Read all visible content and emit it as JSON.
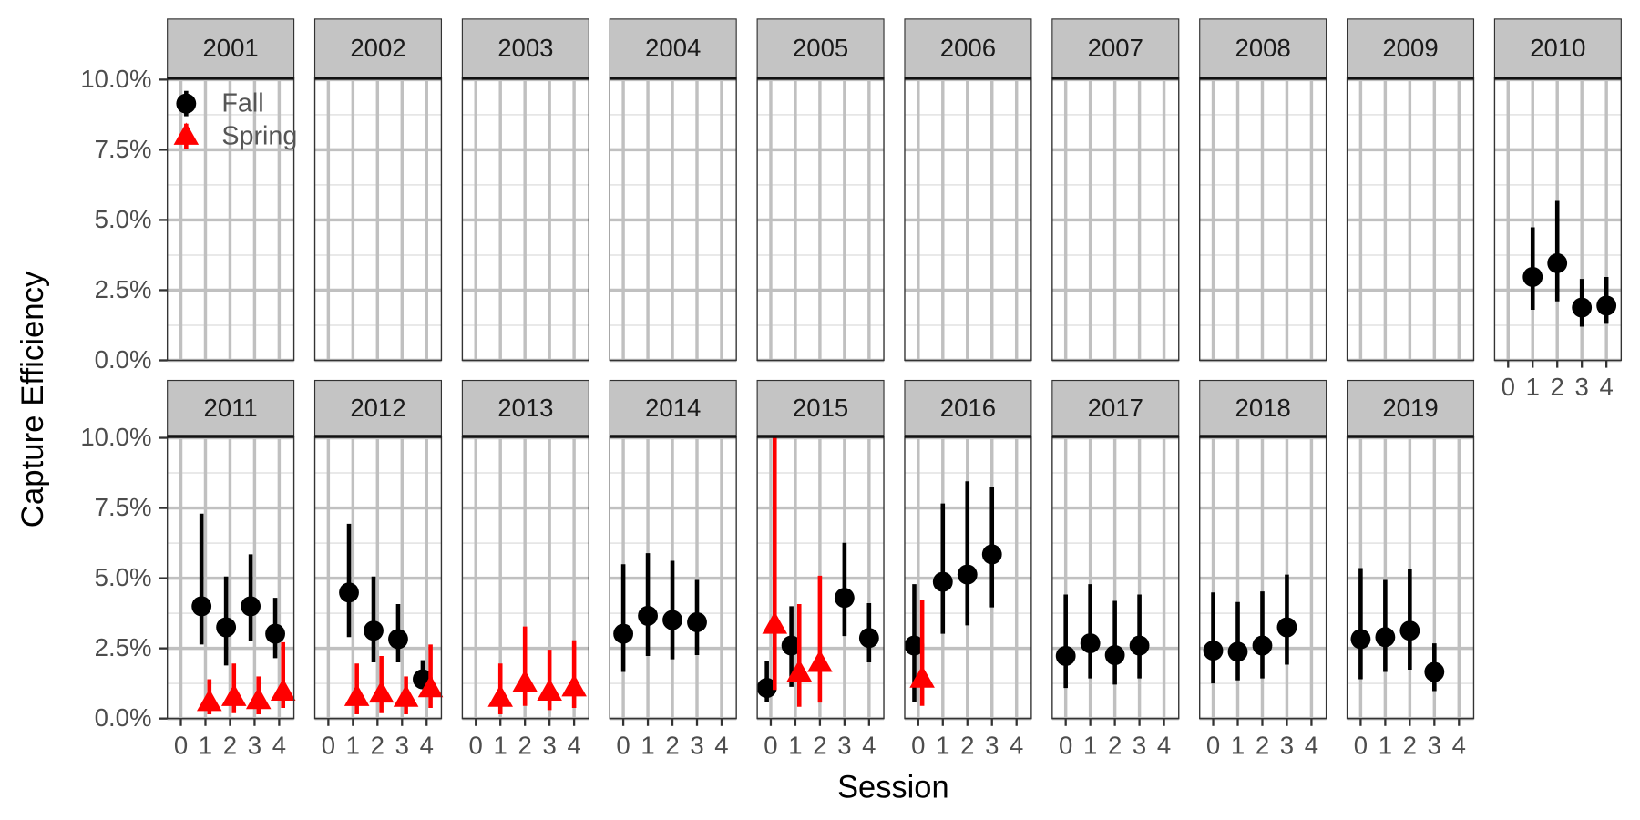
{
  "chart_data": {
    "type": "faceted-errorbar",
    "x_label": "Session",
    "y_label": "Capture Efficiency",
    "xlim": [
      -0.55,
      4.6
    ],
    "xticks": [
      0,
      1,
      2,
      3,
      4
    ],
    "ylim": [
      0,
      10.05
    ],
    "yticks": [
      {
        "value": 0,
        "label": "0.0%"
      },
      {
        "value": 2.5,
        "label": "2.5%"
      },
      {
        "value": 5,
        "label": "5.0%"
      },
      {
        "value": 7.5,
        "label": "7.5%"
      },
      {
        "value": 10,
        "label": "10.0%"
      }
    ],
    "yminor": [
      1.25,
      3.75,
      6.25,
      8.75
    ],
    "grid": true,
    "legend": "top-left",
    "series": [
      {
        "name": "Fall",
        "color": "#000000",
        "marker": "circle"
      },
      {
        "name": "Spring",
        "color": "#ff0000",
        "marker": "triangle"
      }
    ],
    "facets": [
      {
        "label": "2001",
        "data": [
          {
            "x": [],
            "values": [],
            "lower": [],
            "upper": []
          },
          {
            "x": [],
            "values": [],
            "lower": [],
            "upper": []
          }
        ]
      },
      {
        "label": "2002",
        "data": [
          {
            "x": [],
            "values": [],
            "lower": [],
            "upper": []
          },
          {
            "x": [],
            "values": [],
            "lower": [],
            "upper": []
          }
        ]
      },
      {
        "label": "2003",
        "data": [
          {
            "x": [],
            "values": [],
            "lower": [],
            "upper": []
          },
          {
            "x": [],
            "values": [],
            "lower": [],
            "upper": []
          }
        ]
      },
      {
        "label": "2004",
        "data": [
          {
            "x": [],
            "values": [],
            "lower": [],
            "upper": []
          },
          {
            "x": [],
            "values": [],
            "lower": [],
            "upper": []
          }
        ]
      },
      {
        "label": "2005",
        "data": [
          {
            "x": [],
            "values": [],
            "lower": [],
            "upper": []
          },
          {
            "x": [],
            "values": [],
            "lower": [],
            "upper": []
          }
        ]
      },
      {
        "label": "2006",
        "data": [
          {
            "x": [],
            "values": [],
            "lower": [],
            "upper": []
          },
          {
            "x": [],
            "values": [],
            "lower": [],
            "upper": []
          }
        ]
      },
      {
        "label": "2007",
        "data": [
          {
            "x": [],
            "values": [],
            "lower": [],
            "upper": []
          },
          {
            "x": [],
            "values": [],
            "lower": [],
            "upper": []
          }
        ]
      },
      {
        "label": "2008",
        "data": [
          {
            "x": [],
            "values": [],
            "lower": [],
            "upper": []
          },
          {
            "x": [],
            "values": [],
            "lower": [],
            "upper": []
          }
        ]
      },
      {
        "label": "2009",
        "data": [
          {
            "x": [],
            "values": [],
            "lower": [],
            "upper": []
          },
          {
            "x": [],
            "values": [],
            "lower": [],
            "upper": []
          }
        ]
      },
      {
        "label": "2010",
        "data": [
          {
            "x": [
              1,
              2,
              3,
              4
            ],
            "values": [
              2.97,
              3.46,
              1.88,
              1.95
            ],
            "lower": [
              1.8,
              2.1,
              1.2,
              1.3
            ],
            "upper": [
              4.74,
              5.68,
              2.9,
              2.97
            ]
          },
          {
            "x": [],
            "values": [],
            "lower": [],
            "upper": []
          }
        ]
      },
      {
        "label": "2011",
        "data": [
          {
            "x": [
              1,
              2,
              3,
              4
            ],
            "values": [
              4.0,
              3.25,
              4.0,
              3.02
            ],
            "lower": [
              2.64,
              1.89,
              2.75,
              2.15
            ],
            "upper": [
              7.3,
              5.06,
              5.85,
              4.3
            ]
          },
          {
            "x": [
              1,
              2,
              3,
              4
            ],
            "values": [
              0.57,
              0.75,
              0.64,
              0.94
            ],
            "lower": [
              0.15,
              0.19,
              0.15,
              0.38
            ],
            "upper": [
              1.4,
              1.96,
              1.5,
              2.72
            ]
          }
        ]
      },
      {
        "label": "2012",
        "data": [
          {
            "x": [
              1,
              2,
              3,
              4
            ],
            "values": [
              4.49,
              3.13,
              2.83,
              1.4
            ],
            "lower": [
              2.9,
              2.0,
              2.0,
              1.13
            ],
            "upper": [
              6.94,
              5.06,
              4.08,
              2.08
            ]
          },
          {
            "x": [
              1,
              2,
              3,
              4
            ],
            "values": [
              0.75,
              0.87,
              0.72,
              1.06
            ],
            "lower": [
              0.15,
              0.19,
              0.15,
              0.38
            ],
            "upper": [
              1.96,
              2.23,
              1.5,
              2.64
            ]
          }
        ]
      },
      {
        "label": "2013",
        "data": [
          {
            "x": [],
            "values": [],
            "lower": [],
            "upper": []
          },
          {
            "x": [
              1,
              2,
              3,
              4
            ],
            "values": [
              0.72,
              1.25,
              0.94,
              1.09
            ],
            "lower": [
              0.15,
              0.45,
              0.3,
              0.38
            ],
            "upper": [
              1.96,
              3.28,
              2.45,
              2.79
            ]
          }
        ]
      },
      {
        "label": "2014",
        "data": [
          {
            "x": [
              0,
              1,
              2,
              3
            ],
            "values": [
              3.02,
              3.66,
              3.51,
              3.43
            ],
            "lower": [
              1.66,
              2.23,
              2.11,
              2.26
            ],
            "upper": [
              5.5,
              5.89,
              5.62,
              4.94
            ]
          },
          {
            "x": [],
            "values": [],
            "lower": [],
            "upper": []
          }
        ]
      },
      {
        "label": "2015",
        "data": [
          {
            "x": [
              0,
              1,
              3,
              4
            ],
            "values": [
              1.09,
              2.6,
              4.3,
              2.87
            ],
            "lower": [
              0.6,
              1.13,
              2.94,
              2.0
            ],
            "upper": [
              2.04,
              4.0,
              6.26,
              4.11
            ]
          },
          {
            "x": [
              0,
              1,
              2
            ],
            "values": [
              3.32,
              1.62,
              1.96
            ],
            "lower": [
              1.02,
              0.42,
              0.57
            ],
            "upper": [
              10.0,
              4.08,
              5.09
            ]
          }
        ]
      },
      {
        "label": "2016",
        "data": [
          {
            "x": [
              0,
              1,
              2,
              3
            ],
            "values": [
              2.6,
              4.87,
              5.13,
              5.85
            ],
            "lower": [
              0.6,
              3.02,
              3.32,
              3.96
            ],
            "upper": [
              4.79,
              7.66,
              8.45,
              8.26
            ]
          },
          {
            "x": [
              0
            ],
            "values": [
              1.4
            ],
            "lower": [
              0.45
            ],
            "upper": [
              4.23
            ]
          }
        ]
      },
      {
        "label": "2017",
        "data": [
          {
            "x": [
              0,
              1,
              2,
              3
            ],
            "values": [
              2.23,
              2.68,
              2.26,
              2.6
            ],
            "lower": [
              1.09,
              1.43,
              1.21,
              1.43
            ],
            "upper": [
              4.42,
              4.79,
              4.19,
              4.42
            ]
          },
          {
            "x": [],
            "values": [],
            "lower": [],
            "upper": []
          }
        ]
      },
      {
        "label": "2018",
        "data": [
          {
            "x": [
              0,
              1,
              2,
              3
            ],
            "values": [
              2.42,
              2.38,
              2.6,
              3.25
            ],
            "lower": [
              1.25,
              1.36,
              1.43,
              1.92
            ],
            "upper": [
              4.49,
              4.15,
              4.53,
              5.13
            ]
          },
          {
            "x": [],
            "values": [],
            "lower": [],
            "upper": []
          }
        ]
      },
      {
        "label": "2019",
        "data": [
          {
            "x": [
              0,
              1,
              2,
              3
            ],
            "values": [
              2.83,
              2.9,
              3.13,
              1.66
            ],
            "lower": [
              1.4,
              1.66,
              1.74,
              0.98
            ],
            "upper": [
              5.36,
              4.94,
              5.32,
              2.68
            ]
          },
          {
            "x": [],
            "values": [],
            "lower": [],
            "upper": []
          }
        ]
      }
    ]
  }
}
